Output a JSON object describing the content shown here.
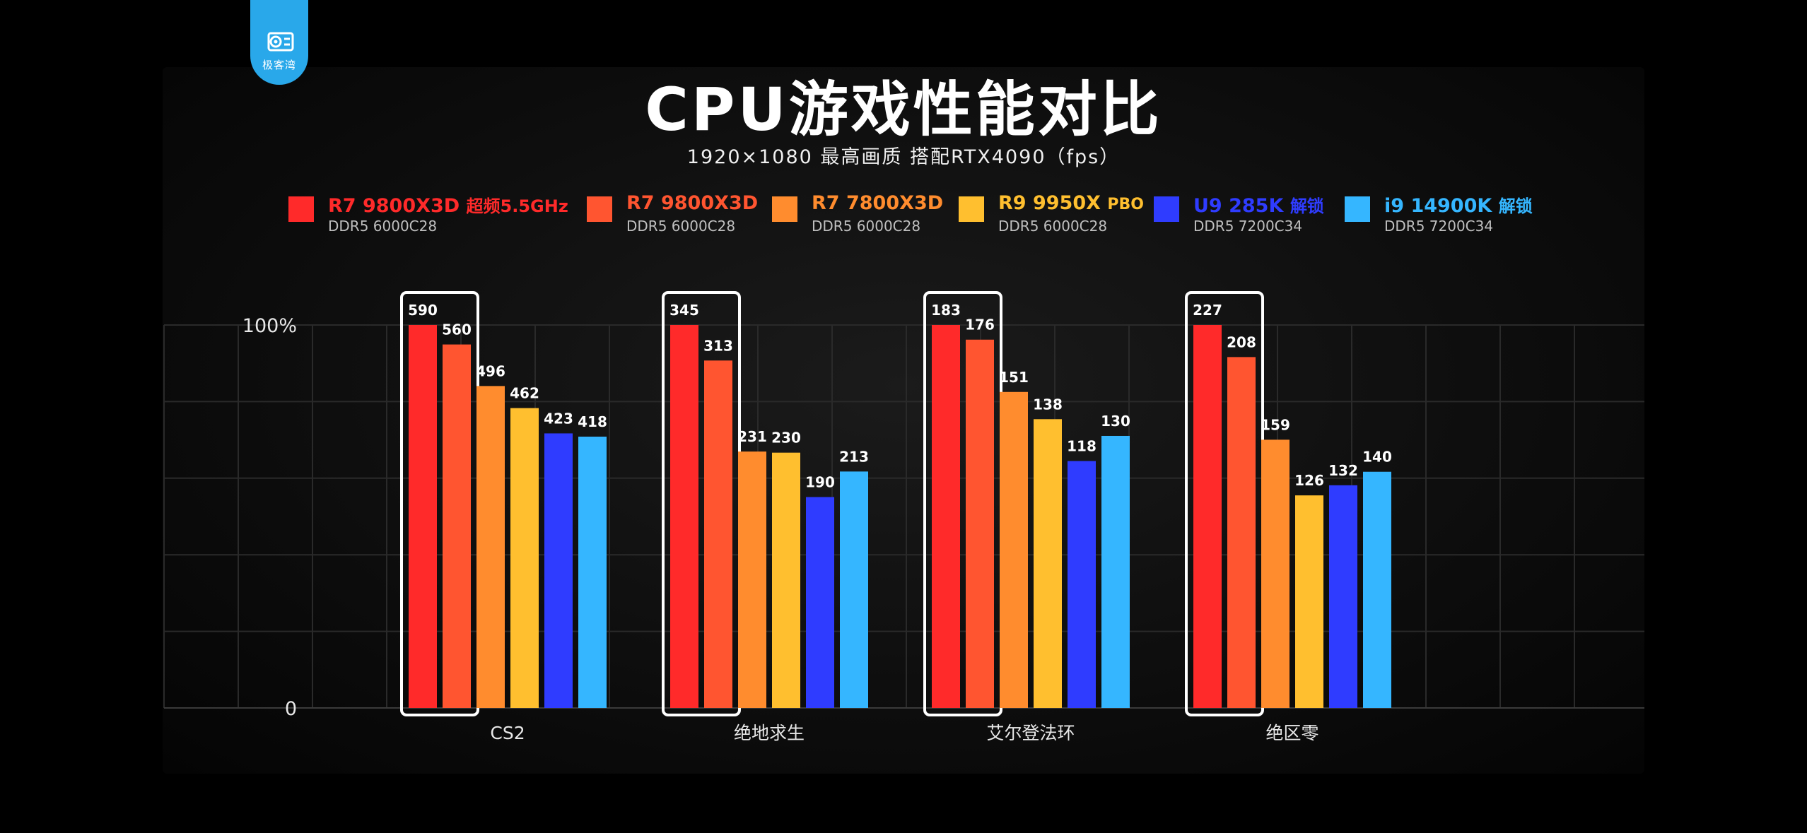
{
  "logo": {
    "text": "极客湾"
  },
  "chart_data": {
    "type": "bar",
    "title": "CPU游戏性能对比",
    "subtitle": "1920×1080  最高画质  搭配RTX4090（fps）",
    "categories": [
      "CS2",
      "绝地求生",
      "艾尔登法环",
      "绝区零"
    ],
    "y_tick_labels": [
      "100%",
      "0"
    ],
    "ylim": [
      0,
      100
    ],
    "value_mode": "percent of best per game",
    "grid": true,
    "legend_position": "top",
    "highlighted_series": [
      0,
      1
    ],
    "series": [
      {
        "name": "R7 9800X3D",
        "name_suffix": "超频5.5GHz",
        "memory": "DDR5 6000C28",
        "color": "#ff2a2a",
        "values": [
          590,
          345,
          183,
          227
        ]
      },
      {
        "name": "R7 9800X3D",
        "name_suffix": "",
        "memory": "DDR5 6000C28",
        "color": "#ff5530",
        "values": [
          560,
          313,
          176,
          208
        ]
      },
      {
        "name": "R7 7800X3D",
        "name_suffix": "",
        "memory": "DDR5 6000C28",
        "color": "#ff8c2e",
        "values": [
          496,
          231,
          151,
          159
        ]
      },
      {
        "name": "R9 9950X",
        "name_suffix": "PBO",
        "memory": "DDR5 6000C28",
        "color": "#ffbf2f",
        "values": [
          462,
          230,
          138,
          126
        ]
      },
      {
        "name": "U9 285K",
        "name_suffix": "解锁",
        "memory": "DDR5 7200C34",
        "color": "#2f3cff",
        "values": [
          423,
          190,
          118,
          132
        ]
      },
      {
        "name": "i9 14900K",
        "name_suffix": "解锁",
        "memory": "DDR5 7200C34",
        "color": "#35b6ff",
        "values": [
          418,
          213,
          130,
          140
        ]
      }
    ]
  }
}
